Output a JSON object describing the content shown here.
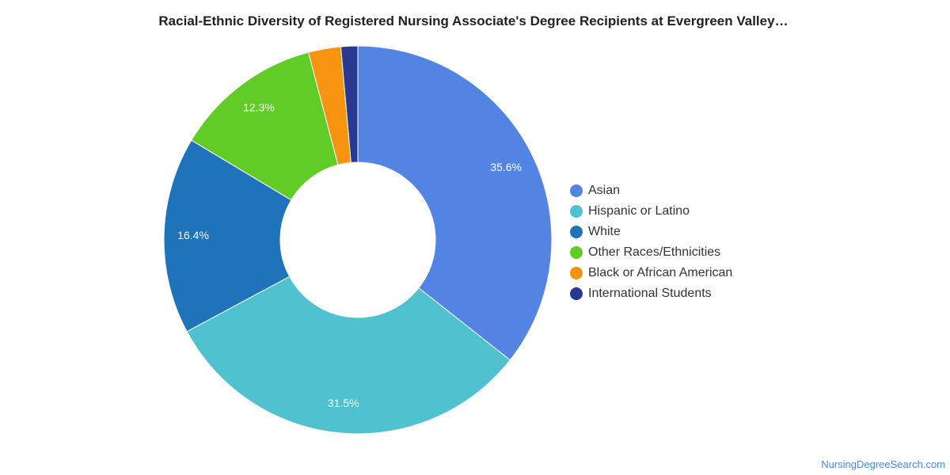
{
  "chart_data": {
    "type": "pie",
    "variant": "donut",
    "title": "Racial-Ethnic Diversity of Registered Nursing Associate's Degree Recipients at Evergreen Valley…",
    "categories": [
      "Asian",
      "Hispanic or Latino",
      "White",
      "Other Races/Ethnicities",
      "Black or African American",
      "International Students"
    ],
    "values": [
      35.6,
      31.5,
      16.4,
      12.3,
      2.7,
      1.4
    ],
    "data_labels": [
      "35.6%",
      "31.5%",
      "16.4%",
      "12.3%",
      "",
      ""
    ],
    "colors": [
      "#5384e3",
      "#4fc1cf",
      "#1f73bb",
      "#61cc26",
      "#f7940f",
      "#2a3990"
    ],
    "legend_position": "right",
    "start_angle": "12 o'clock, clockwise"
  },
  "footer": {
    "credit": "NursingDegreeSearch.com"
  }
}
